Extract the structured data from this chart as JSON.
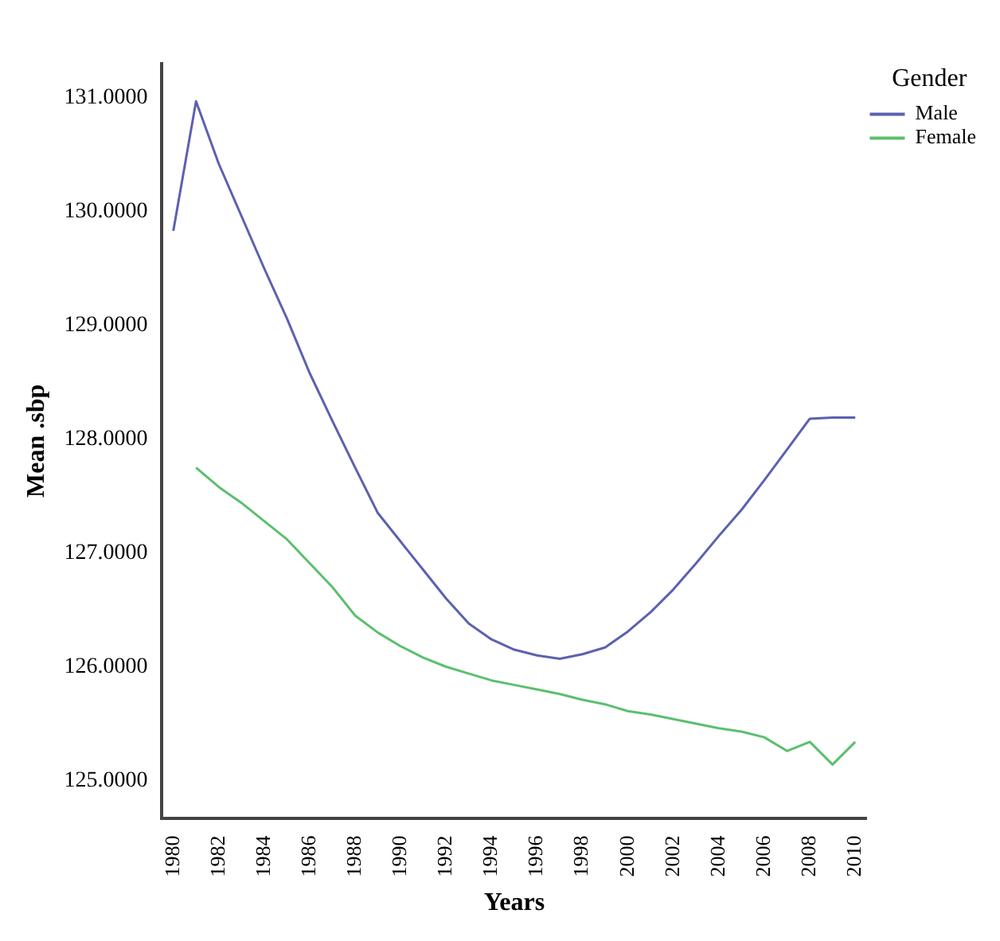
{
  "chart_data": {
    "type": "line",
    "xlabel": "Years",
    "ylabel": "Mean .sbp",
    "legend_title": "Gender",
    "legend": "top right",
    "grid": false,
    "marker": "none",
    "line_style": "solid",
    "categories": [
      "1980",
      null,
      "1982",
      null,
      "1984",
      null,
      "1986",
      null,
      "1988",
      null,
      "1990",
      null,
      "1992",
      null,
      "1994",
      null,
      "1996",
      null,
      "1998",
      null,
      "2000",
      null,
      "2002",
      null,
      "2004",
      null,
      "2006",
      null,
      "2008",
      null,
      "2010"
    ],
    "ylim": [
      124.67,
      131.3
    ],
    "yticks": [
      {
        "value": 125,
        "label": "125.0000"
      },
      {
        "value": 126,
        "label": "126.0000"
      },
      {
        "value": 127,
        "label": "127.0000"
      },
      {
        "value": 128,
        "label": "128.0000"
      },
      {
        "value": 129,
        "label": "129.0000"
      },
      {
        "value": 130,
        "label": "130.0000"
      },
      {
        "value": 131,
        "label": "131.0000"
      }
    ],
    "series": [
      {
        "name": "Male",
        "color": "#5c61b0",
        "values": [
          129.83,
          130.97,
          130.42,
          129.96,
          129.5,
          129.06,
          128.58,
          128.16,
          127.75,
          127.35,
          127.1,
          126.85,
          126.6,
          126.38,
          126.24,
          126.15,
          126.1,
          126.07,
          126.11,
          126.17,
          126.31,
          126.48,
          126.68,
          126.91,
          127.15,
          127.38,
          127.64,
          127.91,
          128.18,
          128.19,
          128.19
        ]
      },
      {
        "name": "Female",
        "color": "#5cbf6e",
        "values": [
          null,
          127.75,
          127.58,
          127.44,
          127.28,
          127.12,
          126.91,
          126.7,
          126.45,
          126.3,
          126.18,
          126.08,
          126.0,
          125.94,
          125.88,
          125.84,
          125.8,
          125.76,
          125.71,
          125.67,
          125.61,
          125.58,
          125.54,
          125.5,
          125.46,
          125.43,
          125.38,
          125.26,
          125.34,
          125.14,
          125.34
        ]
      }
    ]
  }
}
